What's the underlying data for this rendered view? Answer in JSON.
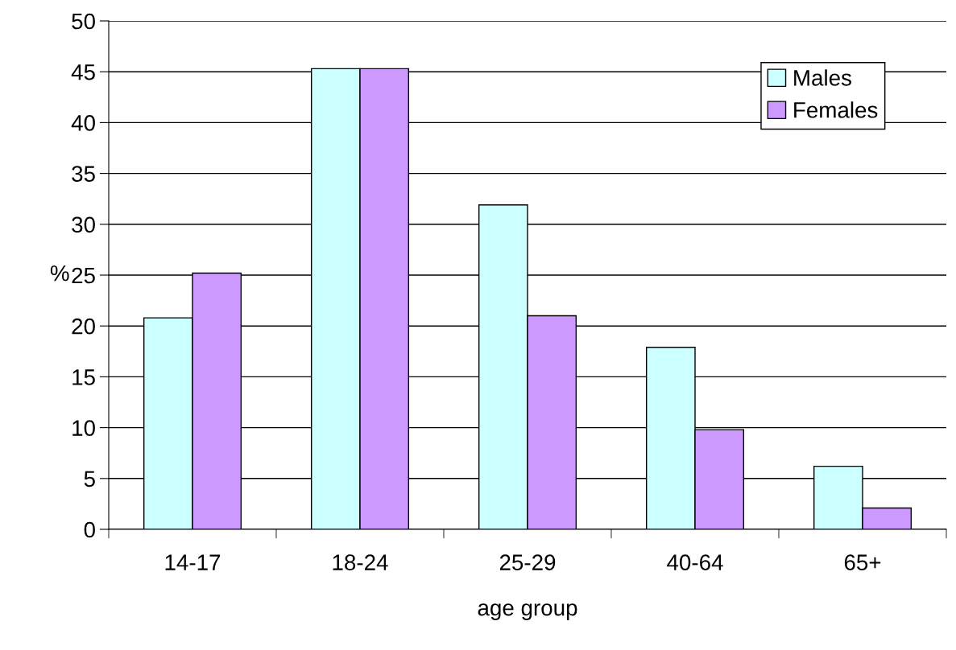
{
  "chart_data": {
    "type": "bar",
    "xlabel": "age group",
    "ylabel": "%",
    "categories": [
      "14-17",
      "18-24",
      "25-29",
      "40-64",
      "65+"
    ],
    "series": [
      {
        "name": "Males",
        "color": "#ccffff",
        "values": [
          20.8,
          45.3,
          31.9,
          17.9,
          6.2
        ]
      },
      {
        "name": "Females",
        "color": "#cc99ff",
        "values": [
          25.2,
          45.3,
          21.0,
          9.8,
          2.1
        ]
      }
    ],
    "ylim": [
      0,
      50
    ],
    "yticks": [
      0,
      5,
      10,
      15,
      20,
      25,
      30,
      35,
      40,
      45,
      50
    ],
    "grid": "y",
    "legend": "top right"
  }
}
